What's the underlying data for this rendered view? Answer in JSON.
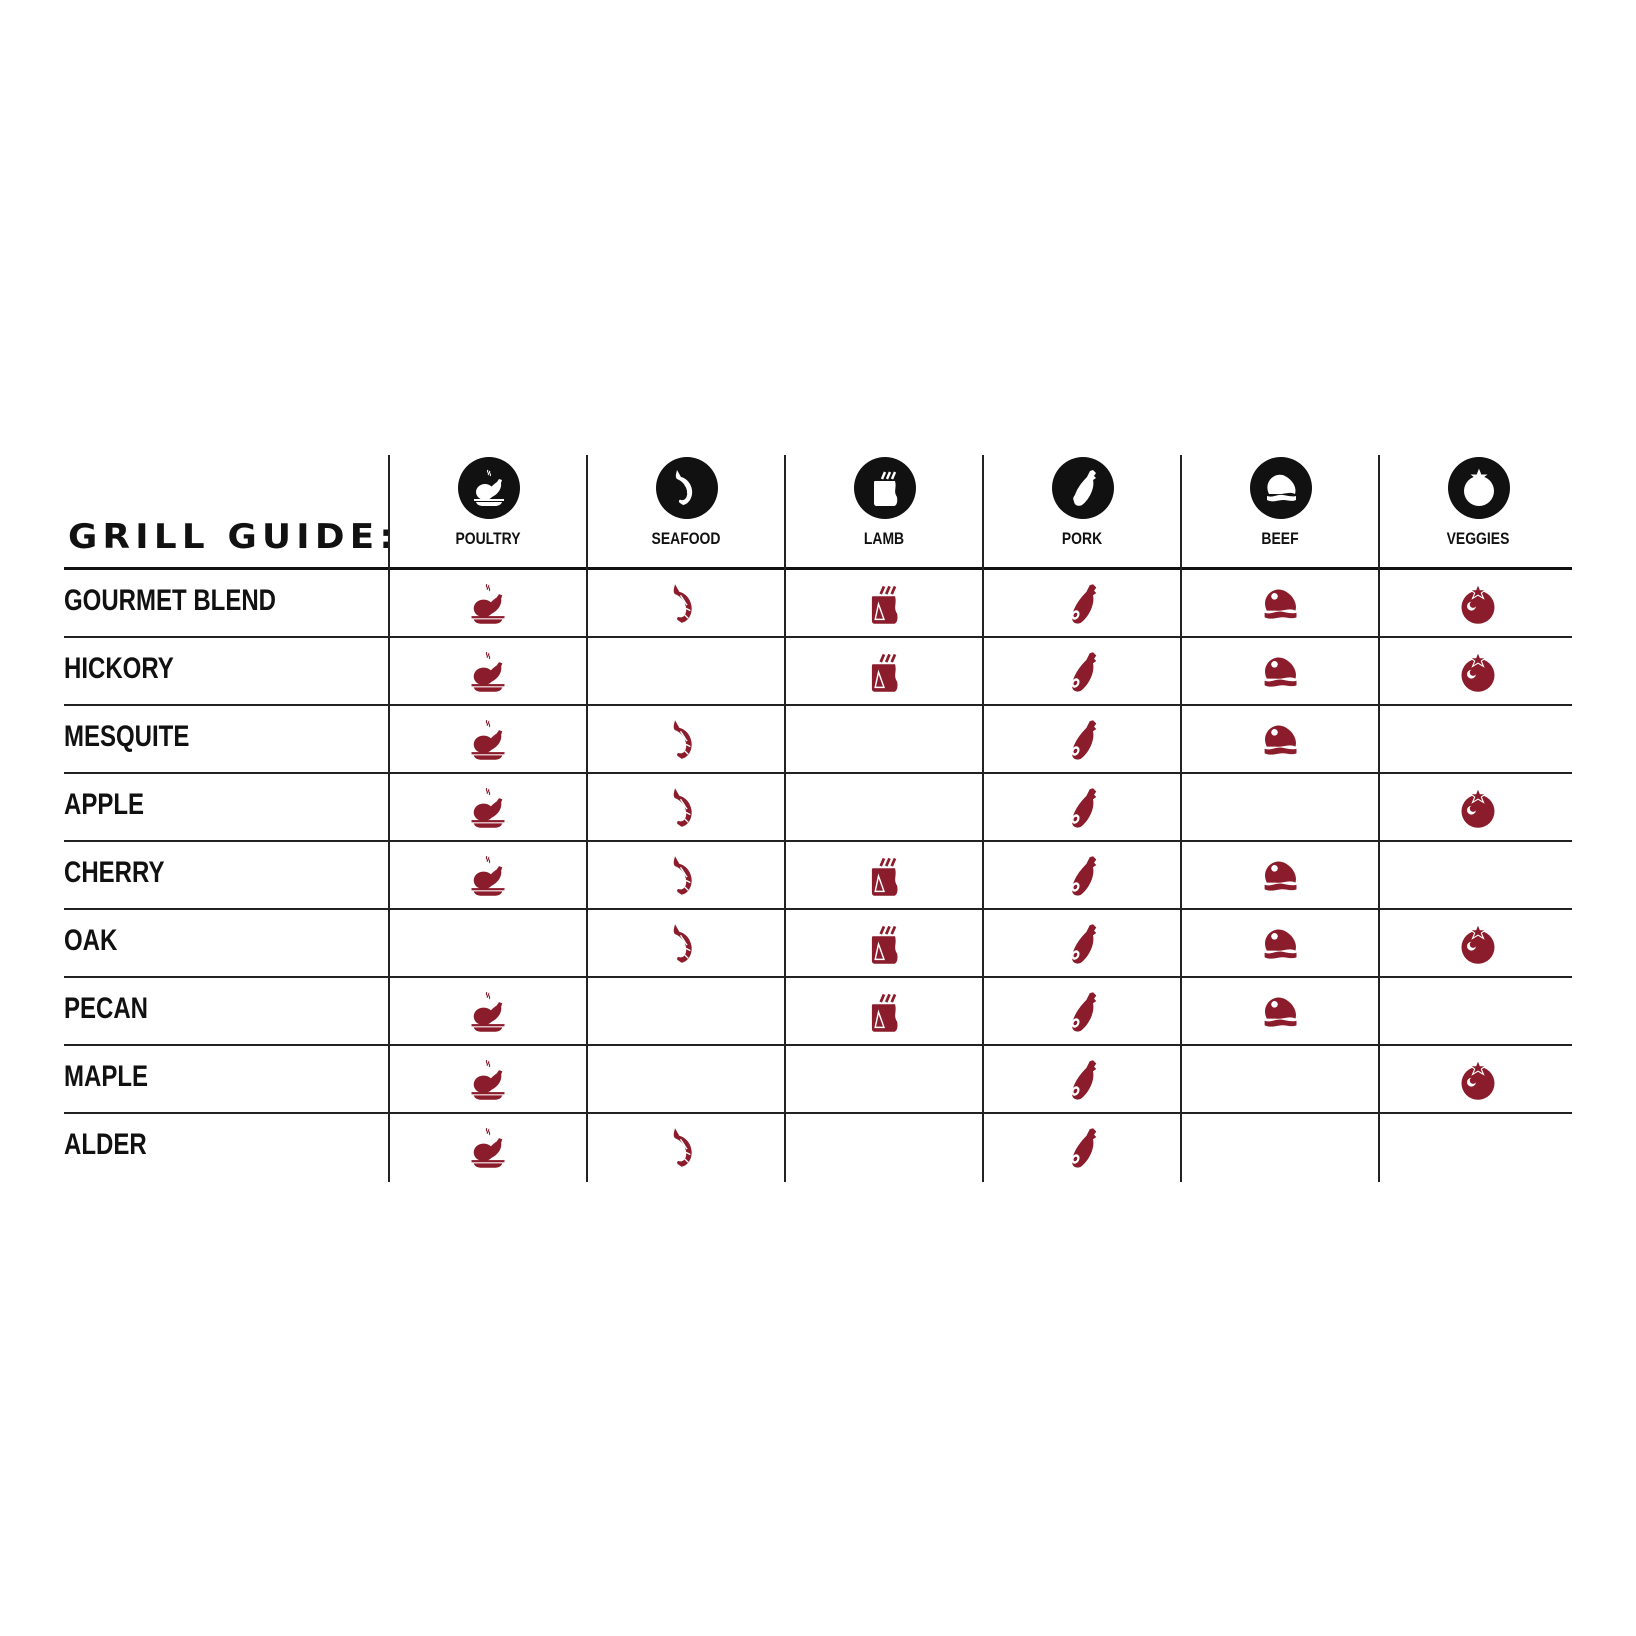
{
  "title": "GRILL GUIDE:",
  "accent_color": "#8a1c2b",
  "header_icon_color": "#111111",
  "columns": [
    {
      "label": "POULTRY",
      "icon": "poultry-icon"
    },
    {
      "label": "SEAFOOD",
      "icon": "seafood-icon"
    },
    {
      "label": "LAMB",
      "icon": "lamb-icon"
    },
    {
      "label": "PORK",
      "icon": "pork-icon"
    },
    {
      "label": "BEEF",
      "icon": "beef-icon"
    },
    {
      "label": "VEGGIES",
      "icon": "veggies-icon"
    }
  ],
  "rows": [
    {
      "name": "GOURMET BLEND",
      "pairings": [
        true,
        true,
        true,
        true,
        true,
        true
      ]
    },
    {
      "name": "HICKORY",
      "pairings": [
        true,
        false,
        true,
        true,
        true,
        true
      ]
    },
    {
      "name": "MESQUITE",
      "pairings": [
        true,
        true,
        false,
        true,
        true,
        false
      ]
    },
    {
      "name": "APPLE",
      "pairings": [
        true,
        true,
        false,
        true,
        false,
        true
      ]
    },
    {
      "name": "CHERRY",
      "pairings": [
        true,
        true,
        true,
        true,
        true,
        false
      ]
    },
    {
      "name": "OAK",
      "pairings": [
        false,
        true,
        true,
        true,
        true,
        true
      ]
    },
    {
      "name": "PECAN",
      "pairings": [
        true,
        false,
        true,
        true,
        true,
        false
      ]
    },
    {
      "name": "MAPLE",
      "pairings": [
        true,
        false,
        false,
        true,
        false,
        true
      ]
    },
    {
      "name": "ALDER",
      "pairings": [
        true,
        true,
        false,
        true,
        false,
        false
      ]
    }
  ]
}
